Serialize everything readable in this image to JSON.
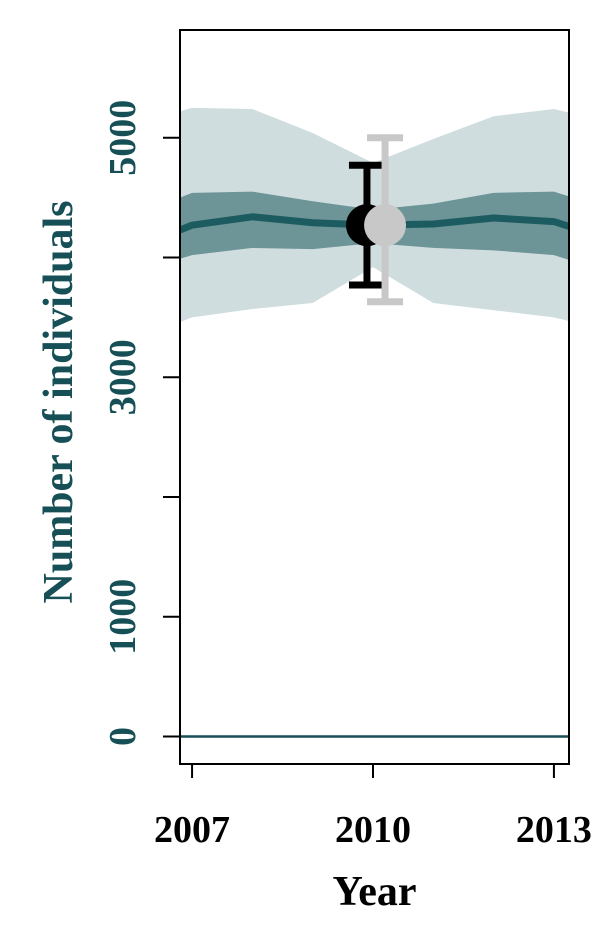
{
  "chart_data": {
    "type": "line",
    "xlabel": "Year",
    "ylabel": "Number of individuals",
    "xlim": [
      2006.8,
      2013.25
    ],
    "ylim": [
      -230,
      5900
    ],
    "x_ticks": [
      2007,
      2010,
      2013
    ],
    "x_tick_labels": [
      "2007",
      "2010",
      "2013"
    ],
    "y_ticks": [
      0,
      1000,
      2000,
      3000,
      4000,
      5000
    ],
    "y_tick_labels": [
      {
        "value": 0,
        "label": "0"
      },
      {
        "value": 1000,
        "label": "1000"
      },
      {
        "value": 3000,
        "label": "3000"
      },
      {
        "value": 5000,
        "label": "5000"
      }
    ],
    "reference_line": 0,
    "series": [
      {
        "x": [
          2006.8,
          2007,
          2008,
          2009,
          2010,
          2011,
          2012,
          2013,
          2013.25
        ],
        "median": [
          4230,
          4270,
          4340,
          4290,
          4270,
          4280,
          4330,
          4300,
          4260
        ],
        "inner_lower": [
          3990,
          4020,
          4080,
          4070,
          4120,
          4080,
          4060,
          4020,
          3980
        ],
        "inner_upper": [
          4500,
          4540,
          4550,
          4470,
          4400,
          4450,
          4540,
          4550,
          4510
        ],
        "outer_lower": [
          3460,
          3500,
          3570,
          3620,
          3920,
          3620,
          3560,
          3500,
          3470
        ],
        "outer_upper": [
          5220,
          5250,
          5240,
          5040,
          4790,
          4990,
          5180,
          5240,
          5210
        ]
      }
    ],
    "estimates": [
      {
        "x": 2009.9,
        "value": 4270,
        "lower": 3770,
        "upper": 4770,
        "color": "#000000"
      },
      {
        "x": 2010.2,
        "value": 4270,
        "lower": 3630,
        "upper": 5000,
        "color": "#c8c8c8"
      }
    ],
    "colors": {
      "outer_band": "#cfdddf",
      "inner_band": "#6d9497",
      "median_line": "#1c5c61",
      "reference_line": "#164f55",
      "y_text": "#164f55"
    }
  }
}
